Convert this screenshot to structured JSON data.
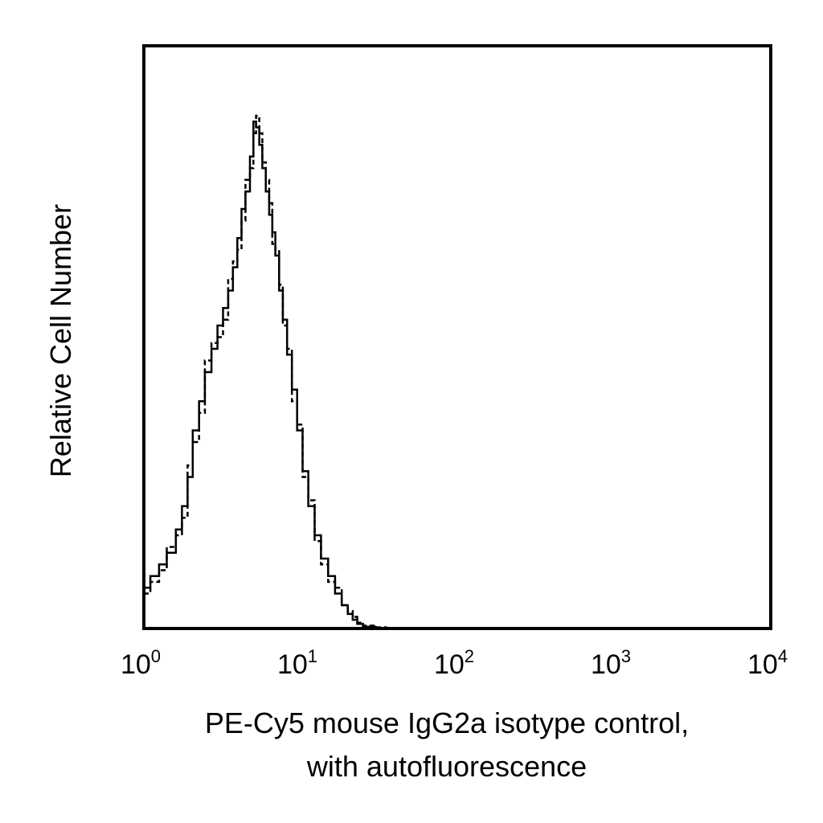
{
  "chart_data": {
    "type": "line",
    "title": "",
    "xlabel_lines": [
      "PE-Cy5 mouse IgG2a isotype control,",
      "with autofluorescence"
    ],
    "ylabel": "Relative Cell Number",
    "x_scale": "log",
    "xlim": [
      1,
      10000
    ],
    "ylim": [
      0,
      100
    ],
    "grid": false,
    "legend": "none",
    "x_ticks": [
      {
        "value": 1,
        "base": "10",
        "exp": "0"
      },
      {
        "value": 10,
        "base": "10",
        "exp": "1"
      },
      {
        "value": 100,
        "base": "10",
        "exp": "2"
      },
      {
        "value": 1000,
        "base": "10",
        "exp": "3"
      },
      {
        "value": 10000,
        "base": "10",
        "exp": "4"
      }
    ],
    "series": [
      {
        "style": "solid",
        "color": "#000000",
        "x": [
          1.0,
          1.1,
          1.25,
          1.4,
          1.6,
          1.75,
          1.9,
          2.05,
          2.25,
          2.45,
          2.7,
          2.95,
          3.2,
          3.45,
          3.7,
          3.95,
          4.2,
          4.45,
          4.75,
          5.0,
          5.2,
          5.45,
          5.7,
          6.0,
          6.3,
          6.6,
          6.9,
          7.3,
          7.7,
          8.2,
          8.8,
          9.5,
          10.3,
          11.2,
          12.3,
          13.5,
          15.0,
          16.6,
          18.3,
          20.0,
          21.5,
          23.0,
          25.0,
          30.0,
          35.0
        ],
        "y": [
          7,
          9,
          11,
          13,
          17,
          21,
          26,
          34,
          39,
          44,
          48,
          52,
          55,
          58,
          62,
          67,
          72,
          75,
          81,
          87,
          86,
          83,
          79,
          75,
          71,
          68,
          64,
          58,
          53,
          47,
          41,
          34,
          27,
          21,
          16,
          12,
          9,
          6,
          4,
          2.5,
          1.5,
          0.8,
          0.3,
          0.1,
          0
        ]
      },
      {
        "style": "dashed",
        "color": "#000000",
        "x": [
          1.0,
          1.1,
          1.25,
          1.4,
          1.6,
          1.75,
          1.9,
          2.05,
          2.25,
          2.45,
          2.7,
          2.95,
          3.2,
          3.45,
          3.7,
          3.95,
          4.2,
          4.45,
          4.75,
          5.0,
          5.2,
          5.45,
          5.7,
          6.0,
          6.3,
          6.6,
          6.9,
          7.3,
          7.7,
          8.2,
          8.8,
          9.5,
          10.3,
          11.2,
          12.3,
          13.5,
          15.0,
          16.6,
          18.3,
          20.0,
          21.5,
          23.0,
          25.0,
          30.0,
          35.0
        ],
        "y": [
          6,
          8,
          10,
          14,
          16,
          19,
          28,
          32,
          37,
          46,
          49,
          50,
          53,
          60,
          63,
          65,
          70,
          77,
          79,
          85,
          88,
          85,
          80,
          77,
          73,
          66,
          65,
          59,
          52,
          48,
          39,
          35,
          26,
          22,
          15,
          11,
          8,
          7,
          4,
          3,
          2,
          1,
          0.5,
          0.2,
          0
        ]
      }
    ]
  }
}
